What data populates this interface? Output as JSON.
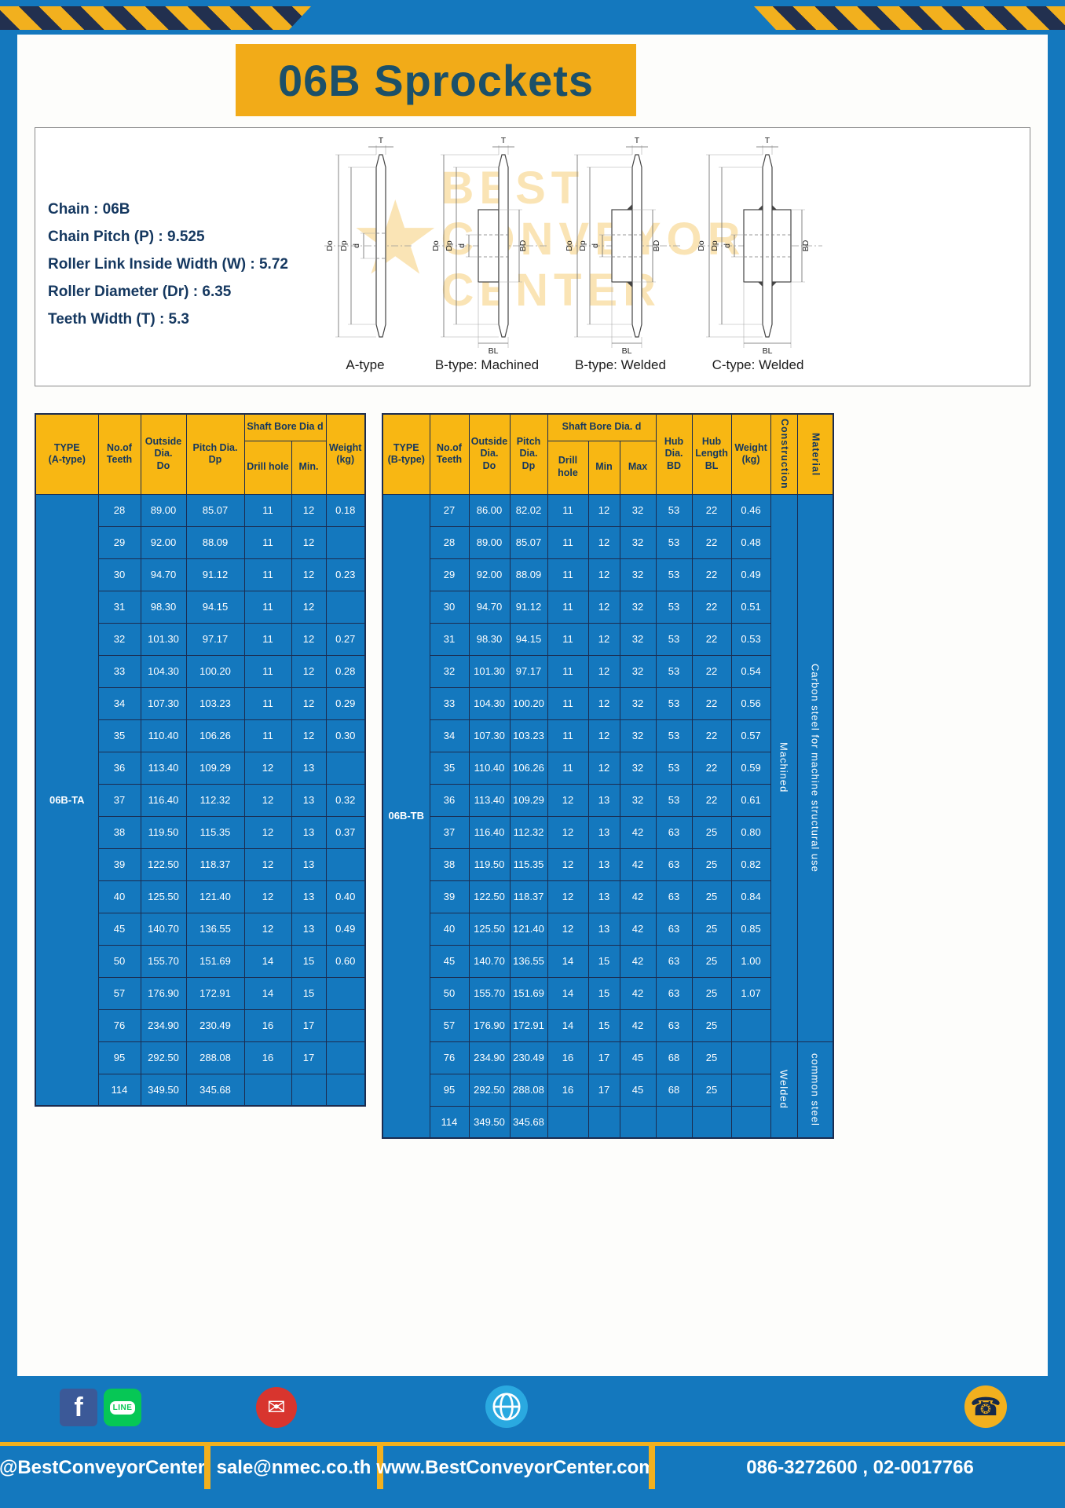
{
  "page": {
    "title": "06B Sprockets"
  },
  "specs": {
    "lines": [
      "Chain : 06B",
      "Chain Pitch (P) : 9.525",
      "Roller Link Inside Width (W) : 5.72",
      "Roller Diameter (Dr) : 6.35",
      "Teeth Width (T) : 5.3"
    ]
  },
  "dims": {
    "t": "T",
    "do": "Do",
    "dp": "Dp",
    "d": "d",
    "bd": "BD",
    "bl": "BL"
  },
  "diagrams": {
    "labels": [
      "A-type",
      "B-type: Machined",
      "B-type: Welded",
      "C-type: Welded"
    ]
  },
  "watermark": [
    "BEST",
    "CONVEYOR",
    "CENTER"
  ],
  "table_a": {
    "type_header": "TYPE\n(A-type)",
    "headers": {
      "teeth": "No.of\nTeeth",
      "outside": "Outside\nDia.\nDo",
      "pitch": "Pitch Dia.\nDp",
      "shaft_group": "Shaft Bore Dia d",
      "drill": "Drill hole",
      "min": "Min.",
      "weight": "Weight\n(kg)"
    },
    "rows": [
      [
        {
          "t": "06B-TA",
          "rs": 19,
          "c": "type-cell"
        },
        "28",
        "89.00",
        "85.07",
        "11",
        "12",
        "0.18"
      ],
      [
        "29",
        "92.00",
        "88.09",
        "11",
        "12",
        ""
      ],
      [
        "30",
        "94.70",
        "91.12",
        "11",
        "12",
        "0.23"
      ],
      [
        "31",
        "98.30",
        "94.15",
        "11",
        "12",
        ""
      ],
      [
        "32",
        "101.30",
        "97.17",
        "11",
        "12",
        "0.27"
      ],
      [
        "33",
        "104.30",
        "100.20",
        "11",
        "12",
        "0.28"
      ],
      [
        "34",
        "107.30",
        "103.23",
        "11",
        "12",
        "0.29"
      ],
      [
        "35",
        "110.40",
        "106.26",
        "11",
        "12",
        "0.30"
      ],
      [
        "36",
        "113.40",
        "109.29",
        "12",
        "13",
        ""
      ],
      [
        "37",
        "116.40",
        "112.32",
        "12",
        "13",
        "0.32"
      ],
      [
        "38",
        "119.50",
        "115.35",
        "12",
        "13",
        "0.37"
      ],
      [
        "39",
        "122.50",
        "118.37",
        "12",
        "13",
        ""
      ],
      [
        "40",
        "125.50",
        "121.40",
        "12",
        "13",
        "0.40"
      ],
      [
        "45",
        "140.70",
        "136.55",
        "12",
        "13",
        "0.49"
      ],
      [
        "50",
        "155.70",
        "151.69",
        "14",
        "15",
        "0.60"
      ],
      [
        "57",
        "176.90",
        "172.91",
        "14",
        "15",
        ""
      ],
      [
        "76",
        "234.90",
        "230.49",
        "16",
        "17",
        ""
      ],
      [
        "95",
        "292.50",
        "288.08",
        "16",
        "17",
        ""
      ],
      [
        "114",
        "349.50",
        "345.68",
        "",
        "",
        ""
      ]
    ]
  },
  "table_b": {
    "type_header": "TYPE\n(B-type)",
    "headers": {
      "teeth": "No.of\nTeeth",
      "outside": "Outside\nDia.\nDo",
      "pitch": "Pitch\nDia.\nDp",
      "shaft_group": "Shaft Bore Dia. d",
      "drill": "Drill hole",
      "min": "Min",
      "max": "Max",
      "hub_dia": "Hub\nDia.\nBD",
      "hub_len": "Hub\nLength\nBL",
      "weight": "Weight\n(kg)",
      "construction": "Construction",
      "material": "Material"
    },
    "rows": [
      [
        {
          "t": "06B-TB",
          "rs": 20,
          "c": "type-cell"
        },
        "27",
        "86.00",
        "82.02",
        "11",
        "12",
        "32",
        "53",
        "22",
        "0.46",
        {
          "t": "Machined",
          "rs": 17,
          "c": "vcell"
        },
        {
          "t": "Carbon steel for machine structural use",
          "rs": 17,
          "c": "vcell"
        }
      ],
      [
        "28",
        "89.00",
        "85.07",
        "11",
        "12",
        "32",
        "53",
        "22",
        "0.48"
      ],
      [
        "29",
        "92.00",
        "88.09",
        "11",
        "12",
        "32",
        "53",
        "22",
        "0.49"
      ],
      [
        "30",
        "94.70",
        "91.12",
        "11",
        "12",
        "32",
        "53",
        "22",
        "0.51"
      ],
      [
        "31",
        "98.30",
        "94.15",
        "11",
        "12",
        "32",
        "53",
        "22",
        "0.53"
      ],
      [
        "32",
        "101.30",
        "97.17",
        "11",
        "12",
        "32",
        "53",
        "22",
        "0.54"
      ],
      [
        "33",
        "104.30",
        "100.20",
        "11",
        "12",
        "32",
        "53",
        "22",
        "0.56"
      ],
      [
        "34",
        "107.30",
        "103.23",
        "11",
        "12",
        "32",
        "53",
        "22",
        "0.57"
      ],
      [
        "35",
        "110.40",
        "106.26",
        "11",
        "12",
        "32",
        "53",
        "22",
        "0.59"
      ],
      [
        "36",
        "113.40",
        "109.29",
        "12",
        "13",
        "32",
        "53",
        "22",
        "0.61"
      ],
      [
        "37",
        "116.40",
        "112.32",
        "12",
        "13",
        "42",
        "63",
        "25",
        "0.80"
      ],
      [
        "38",
        "119.50",
        "115.35",
        "12",
        "13",
        "42",
        "63",
        "25",
        "0.82"
      ],
      [
        "39",
        "122.50",
        "118.37",
        "12",
        "13",
        "42",
        "63",
        "25",
        "0.84"
      ],
      [
        "40",
        "125.50",
        "121.40",
        "12",
        "13",
        "42",
        "63",
        "25",
        "0.85"
      ],
      [
        "45",
        "140.70",
        "136.55",
        "14",
        "15",
        "42",
        "63",
        "25",
        "1.00"
      ],
      [
        "50",
        "155.70",
        "151.69",
        "14",
        "15",
        "42",
        "63",
        "25",
        "1.07"
      ],
      [
        "57",
        "176.90",
        "172.91",
        "14",
        "15",
        "42",
        "63",
        "25",
        ""
      ],
      [
        "76",
        "234.90",
        "230.49",
        "16",
        "17",
        "45",
        "68",
        "25",
        "",
        {
          "t": "Welded",
          "rs": 3,
          "c": "vcell"
        },
        {
          "t": "common steel",
          "rs": 3,
          "c": "vcell"
        }
      ],
      [
        "95",
        "292.50",
        "288.08",
        "16",
        "17",
        "45",
        "68",
        "25",
        ""
      ],
      [
        "114",
        "349.50",
        "345.68",
        "",
        "",
        "",
        "",
        "",
        ""
      ]
    ]
  },
  "footer": {
    "fb_label": "f",
    "line_label": "LINE",
    "handle": "@BestConveyorCenter",
    "email": "sale@nmec.co.th",
    "website": "www.BestConveyorCenter.com",
    "phone": "086-3272600 , 02-0017766"
  }
}
